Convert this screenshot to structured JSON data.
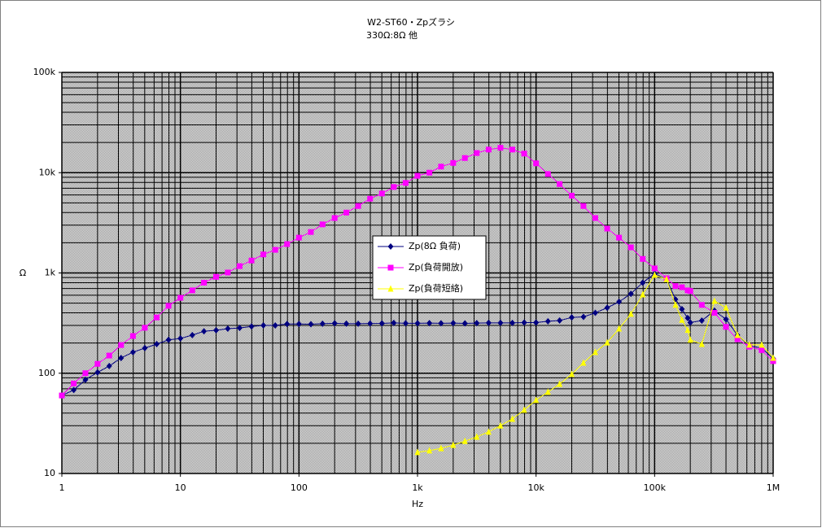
{
  "chart_data": {
    "type": "line",
    "title": "W2-ST60・Zpズラシ",
    "subtitle": "330Ω:8Ω 他",
    "x_label": "Hz",
    "y_label": "Ω",
    "x_log": true,
    "y_log": true,
    "grid": true,
    "legend": "center",
    "x": [
      1,
      1.26,
      1.58,
      2,
      2.51,
      3.16,
      3.98,
      5.01,
      6.31,
      7.94,
      10,
      12.6,
      15.8,
      20,
      25.1,
      31.6,
      39.8,
      50.1,
      63.1,
      79.4,
      100,
      126,
      158,
      200,
      251,
      316,
      398,
      501,
      631,
      794,
      1000,
      1260,
      1580,
      2000,
      2510,
      3160,
      3980,
      5010,
      6310,
      7940,
      10000,
      12600,
      15800,
      20000,
      25100,
      31600,
      39800,
      50100,
      63100,
      79400,
      100000,
      126000,
      150000,
      170000,
      190000,
      200000,
      250000,
      320000,
      400000,
      500000,
      630000,
      800000,
      1000000
    ],
    "series": [
      {
        "name": "Zp(8Ω 負荷)",
        "color": "#000080",
        "marker": "diamond",
        "values": [
          60,
          68,
          86,
          102,
          118,
          142,
          162,
          178,
          195,
          215,
          222,
          240,
          262,
          268,
          278,
          283,
          293,
          300,
          300,
          310,
          310,
          308,
          312,
          315,
          312,
          312,
          313,
          314,
          318,
          315,
          315,
          316,
          315,
          316,
          314,
          316,
          318,
          318,
          318,
          320,
          320,
          330,
          335,
          360,
          365,
          400,
          450,
          515,
          620,
          800,
          985,
          865,
          545,
          435,
          355,
          320,
          335,
          420,
          345,
          240,
          188,
          178,
          140
        ]
      },
      {
        "name": "Zp(負荷開放)",
        "color": "#ff00ff",
        "marker": "square",
        "values": [
          60,
          79,
          100,
          124,
          150,
          191,
          235,
          284,
          360,
          470,
          565,
          670,
          800,
          915,
          1010,
          1170,
          1330,
          1530,
          1700,
          1940,
          2250,
          2560,
          3050,
          3530,
          4000,
          4650,
          5500,
          6200,
          7200,
          7900,
          9300,
          10000,
          11500,
          12500,
          14000,
          15700,
          17000,
          17700,
          17000,
          15500,
          12400,
          9700,
          7700,
          5900,
          4650,
          3530,
          2770,
          2250,
          1800,
          1380,
          1110,
          885,
          740,
          720,
          670,
          660,
          480,
          400,
          290,
          218,
          184,
          170,
          132
        ]
      },
      {
        "name": "Zp(負荷短絡)",
        "color": "#ffff00",
        "marker": "triangle",
        "values": [
          null,
          null,
          null,
          null,
          null,
          null,
          null,
          null,
          null,
          null,
          null,
          null,
          null,
          null,
          null,
          null,
          null,
          null,
          null,
          null,
          null,
          null,
          null,
          null,
          null,
          null,
          null,
          null,
          null,
          null,
          16.3,
          16.9,
          17.8,
          19.2,
          21,
          23.2,
          26,
          30,
          35,
          43,
          54,
          65,
          78,
          98,
          127,
          162,
          202,
          278,
          390,
          610,
          955,
          865,
          480,
          340,
          270,
          215,
          195,
          525,
          450,
          240,
          192,
          192,
          142
        ]
      }
    ],
    "xlim": [
      1,
      1000000
    ],
    "xticks": [
      1,
      10,
      100,
      {
        "value": 1000,
        "label": "1k"
      },
      {
        "value": 10000,
        "label": "10k"
      },
      {
        "value": 100000,
        "label": "100k"
      },
      {
        "value": 1000000,
        "label": "1M"
      }
    ],
    "ylim": [
      10,
      100000
    ],
    "yticks": [
      10,
      100,
      {
        "value": 1000,
        "label": "1k"
      },
      {
        "value": 10000,
        "label": "10k"
      },
      {
        "value": 100000,
        "label": "100k"
      }
    ]
  }
}
